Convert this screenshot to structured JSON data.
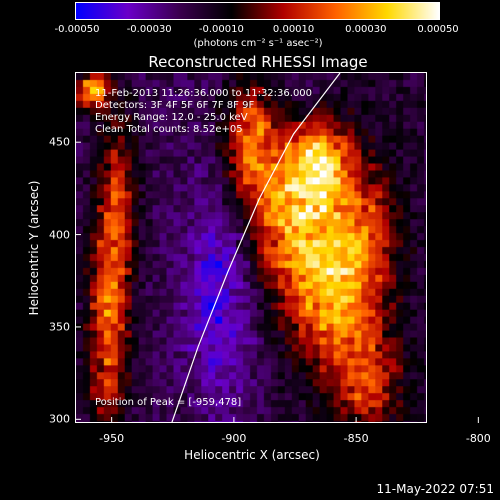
{
  "chart_data": {
    "type": "heatmap",
    "title": "Reconstructed RHESSI Image",
    "colorbar": {
      "ticks": [
        "-0.00050",
        "-0.00030",
        "-0.00010",
        "0.00010",
        "0.00030",
        "0.00050"
      ],
      "unit_label": "(photons cm⁻² s⁻¹ asec⁻²)",
      "range": [
        -0.0005,
        0.0005
      ],
      "colormap": [
        "#0000ff",
        "#6a00c8",
        "#3a004e",
        "#000000",
        "#b00000",
        "#ff6000",
        "#ffd800",
        "#ffffff"
      ]
    },
    "xlabel": "Heliocentric X (arcsec)",
    "ylabel": "Heliocentric Y (arcsec)",
    "x_ticks": [
      "-950",
      "-900",
      "-850",
      "-800"
    ],
    "y_ticks": [
      "450",
      "400",
      "350",
      "300"
    ],
    "xlim": [
      -965,
      -821
    ],
    "ylim": [
      298,
      488
    ],
    "annotations": [
      "11-Feb-2013 11:26:36.000 to 11:32:36.000",
      "Detectors: 3F 4F 5F 6F 7F 8F 9F",
      "Energy Range: 12.0 - 25.0 keV",
      "Clean    Total counts: 8.52e+05"
    ],
    "peak_text": "Position of Peak = [-959,478]",
    "limb_points": [
      [
        -926,
        298
      ],
      [
        -915,
        340
      ],
      [
        -903,
        380
      ],
      [
        -890,
        420
      ],
      [
        -876,
        455
      ],
      [
        -857,
        488
      ]
    ],
    "sources": [
      {
        "x": -872,
        "y": 405,
        "amp": 0.00048,
        "sx": 14,
        "sy": 30
      },
      {
        "x": -865,
        "y": 440,
        "amp": 0.0004,
        "sx": 9,
        "sy": 15
      },
      {
        "x": -893,
        "y": 448,
        "amp": 0.00042,
        "sx": 8,
        "sy": 24
      },
      {
        "x": -959,
        "y": 478,
        "amp": 0.0005,
        "sx": 5,
        "sy": 7
      },
      {
        "x": -952,
        "y": 350,
        "amp": 0.0004,
        "sx": 6,
        "sy": 40
      },
      {
        "x": -948,
        "y": 420,
        "amp": 0.00028,
        "sx": 6,
        "sy": 35
      },
      {
        "x": -860,
        "y": 360,
        "amp": 0.00034,
        "sx": 10,
        "sy": 25
      },
      {
        "x": -845,
        "y": 395,
        "amp": 0.0003,
        "sx": 9,
        "sy": 30
      },
      {
        "x": -845,
        "y": 320,
        "amp": 0.0003,
        "sx": 10,
        "sy": 20
      },
      {
        "x": -905,
        "y": 360,
        "amp": -0.00025,
        "sx": 10,
        "sy": 45
      }
    ]
  },
  "footer": {
    "date": "11-May-2022 07:51"
  }
}
